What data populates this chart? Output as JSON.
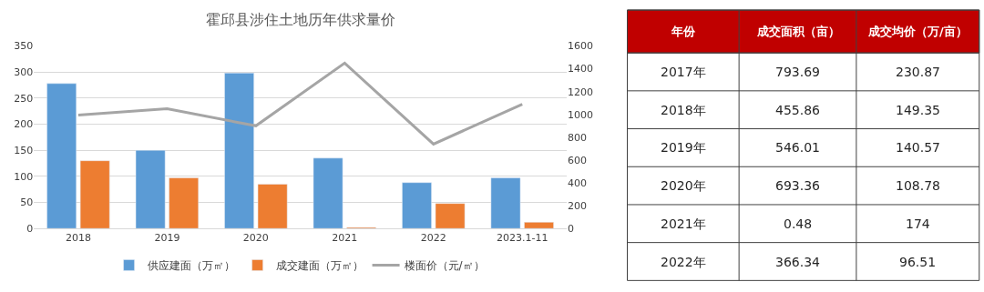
{
  "chart_data": [
    {
      "type": "bar",
      "title": "霍邱县涉住土地历年供求量价",
      "categories": [
        "2018",
        "2019",
        "2020",
        "2021",
        "2022",
        "2023.1-11"
      ],
      "series": [
        {
          "name": "供应建面（万㎡）",
          "color": "#5b9bd5",
          "values": [
            278,
            150,
            298,
            135,
            88,
            97
          ]
        },
        {
          "name": "成交建面（万㎡）",
          "color": "#ed7d31",
          "values": [
            130,
            97,
            85,
            2,
            48,
            12
          ]
        },
        {
          "name": "楼面价（元/㎡）",
          "color": "#a5a5a5",
          "type": "line",
          "axis": "y2",
          "marker": "none",
          "values": [
            995,
            1050,
            900,
            1450,
            740,
            1090
          ]
        }
      ],
      "ylim": [
        0,
        350
      ],
      "yticks": [
        0,
        50,
        100,
        150,
        200,
        250,
        300,
        350
      ],
      "y2lim": [
        0,
        1600
      ],
      "y2ticks": [
        0,
        200,
        400,
        600,
        800,
        1000,
        1200,
        1400,
        1600
      ],
      "grid": "y",
      "legend": "bottom"
    },
    {
      "type": "heatmap",
      "ylabel": "年份",
      "color": "#c00000",
      "categories": [
        "成交面积（亩）",
        "成交均价（万/亩）"
      ],
      "y_categories": [
        "2017年",
        "2018年",
        "2019年",
        "2020年",
        "2021年",
        "2022年"
      ],
      "cells": [
        [
          793.69,
          230.87
        ],
        [
          455.86,
          149.35
        ],
        [
          546.01,
          140.57
        ],
        [
          693.36,
          108.78
        ],
        [
          0.48,
          174
        ],
        [
          366.34,
          96.51
        ]
      ],
      "data_labels": true
    }
  ]
}
